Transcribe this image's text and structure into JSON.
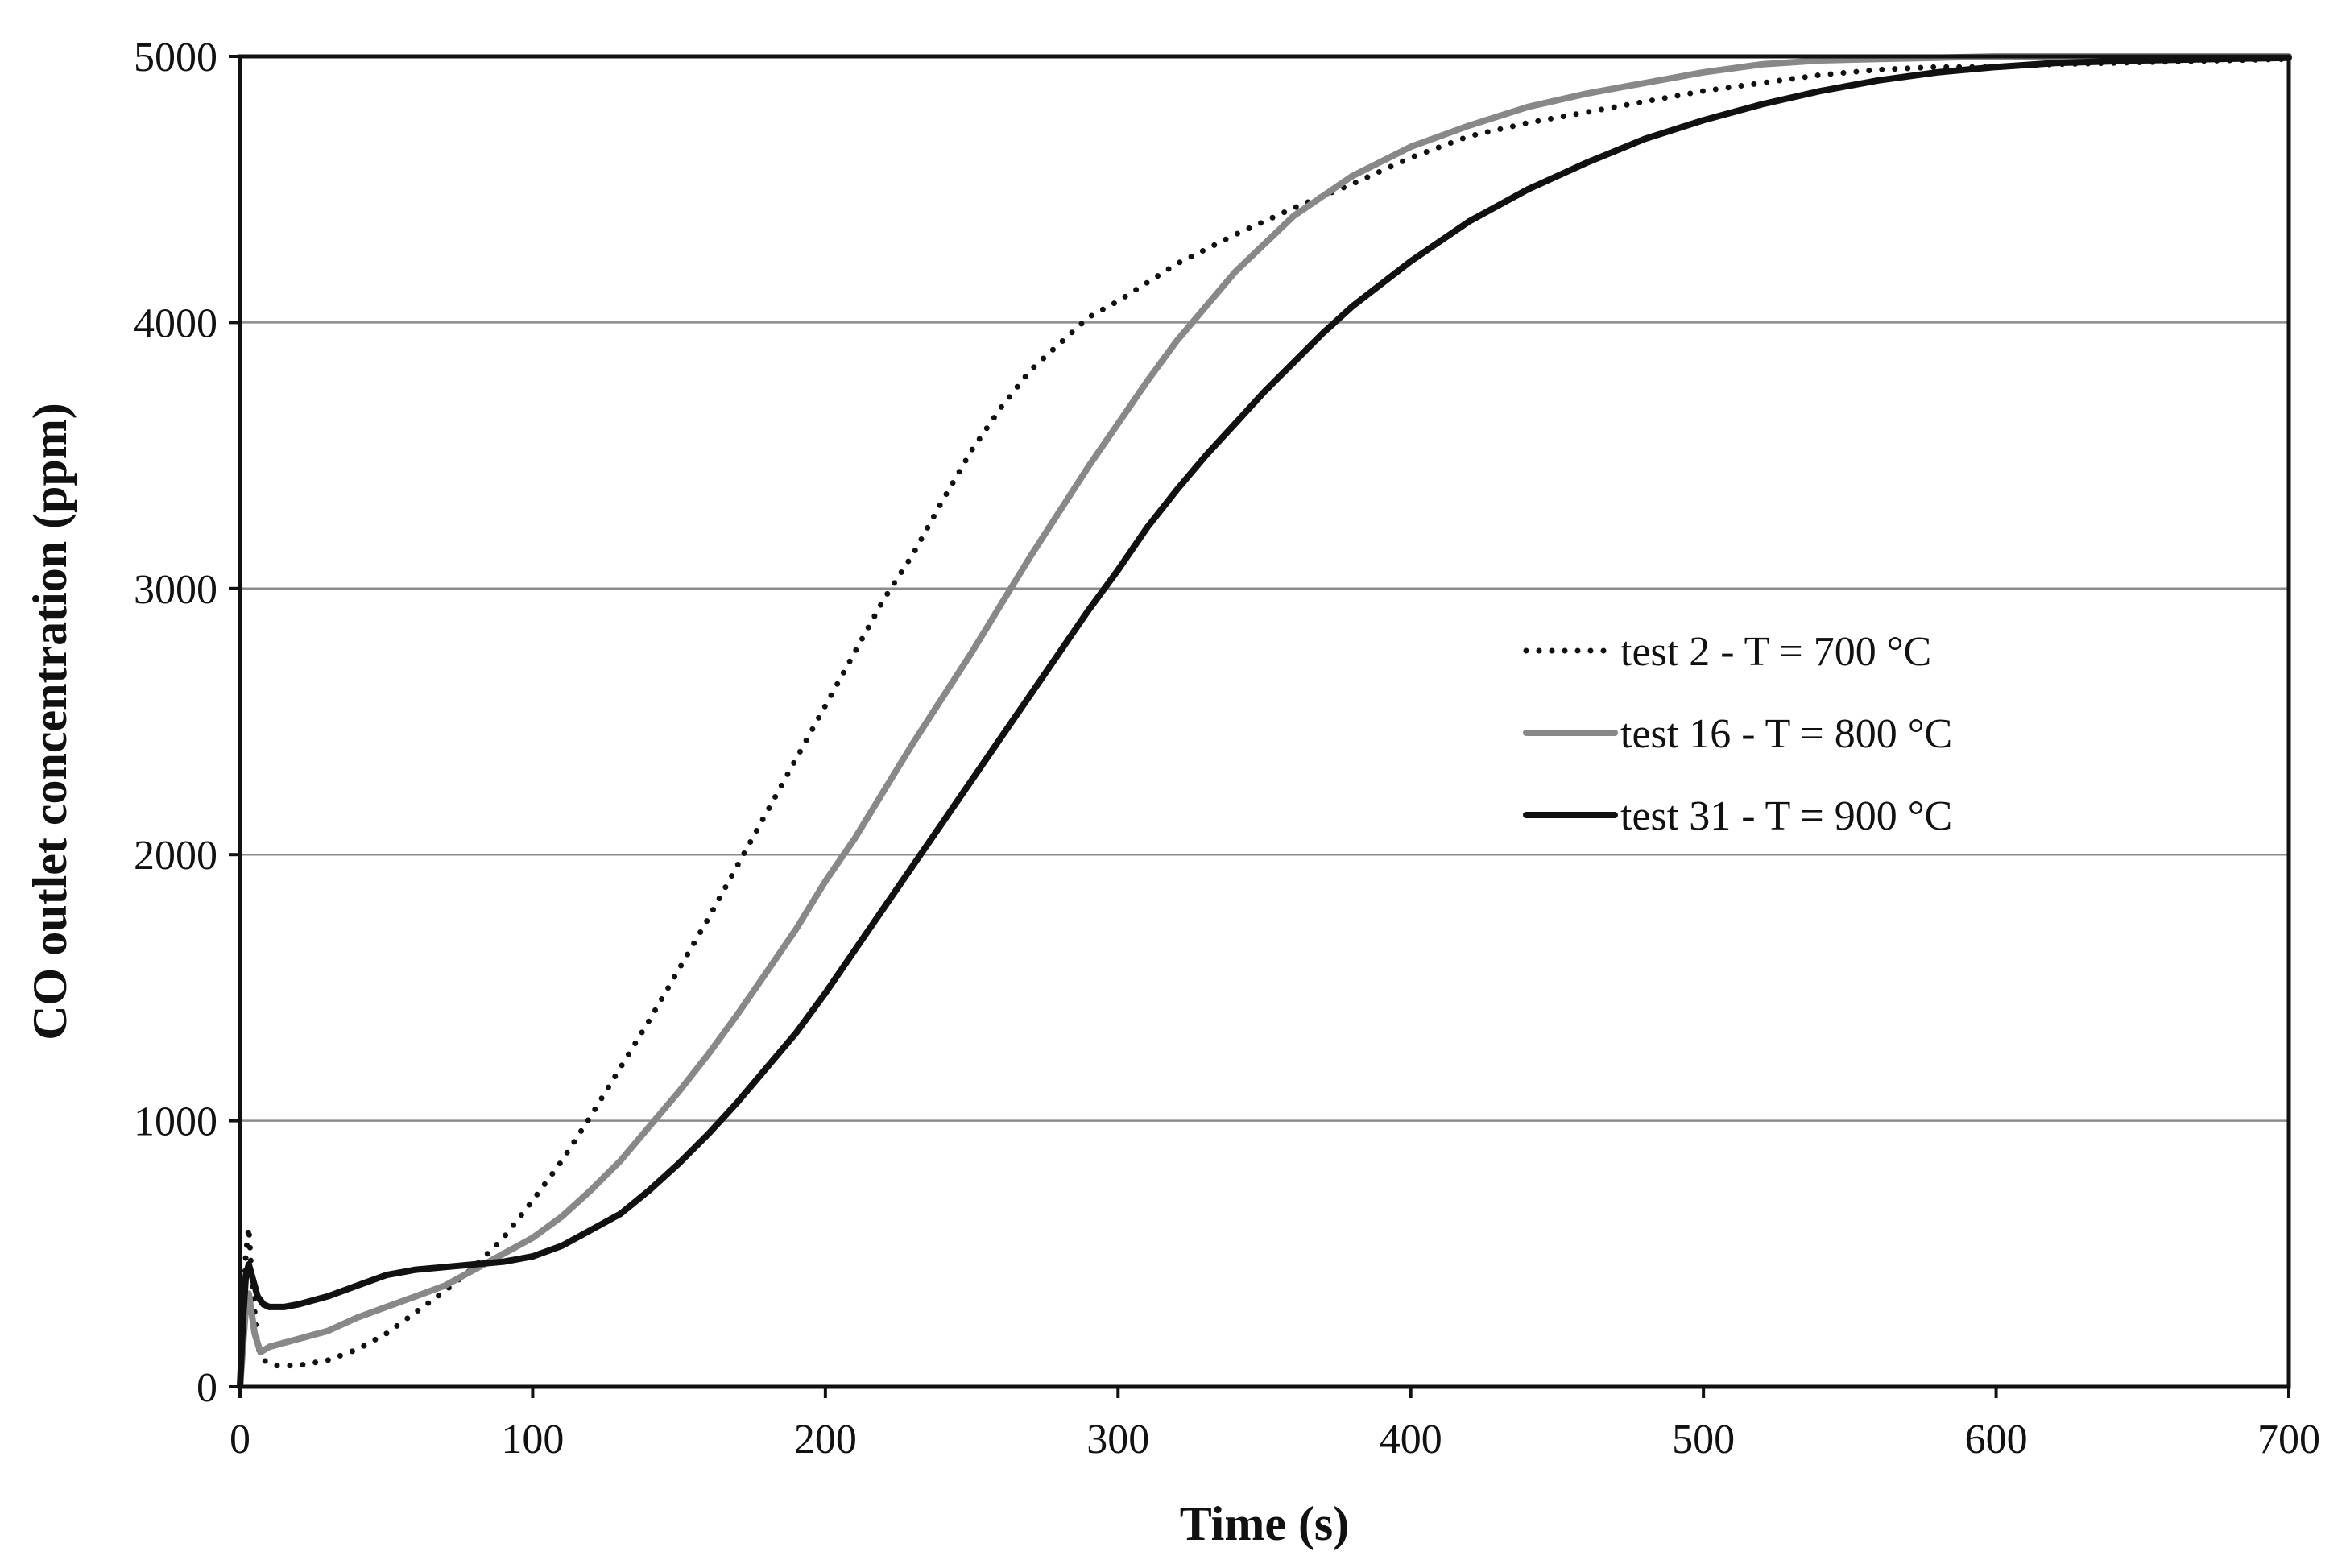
{
  "chart_data": {
    "type": "line",
    "title": "",
    "xlabel": "Time (s)",
    "ylabel": "CO outlet concentration  (ppm)",
    "xlim": [
      0,
      700
    ],
    "ylim": [
      0,
      5000
    ],
    "xticks": [
      0,
      100,
      200,
      300,
      400,
      500,
      600,
      700
    ],
    "yticks": [
      0,
      1000,
      2000,
      3000,
      4000,
      5000
    ],
    "grid": "horizontal",
    "legend_position": "center-right",
    "series": [
      {
        "name": "test 2 - T = 700 °C",
        "style": "dotted",
        "color": "#111111",
        "x": [
          0,
          2,
          3,
          4,
          6,
          8,
          12,
          20,
          30,
          40,
          50,
          60,
          70,
          80,
          90,
          100,
          110,
          120,
          130,
          140,
          150,
          160,
          170,
          180,
          190,
          200,
          210,
          220,
          230,
          240,
          250,
          260,
          270,
          280,
          290,
          300,
          320,
          340,
          360,
          380,
          400,
          420,
          440,
          460,
          480,
          500,
          520,
          540,
          560,
          580,
          600,
          620,
          640,
          660,
          680,
          700
        ],
        "y": [
          0,
          500,
          600,
          420,
          150,
          100,
          80,
          80,
          100,
          140,
          200,
          280,
          360,
          450,
          560,
          700,
          850,
          1020,
          1200,
          1380,
          1570,
          1760,
          1960,
          2160,
          2360,
          2560,
          2760,
          2960,
          3130,
          3330,
          3520,
          3680,
          3820,
          3920,
          4020,
          4080,
          4220,
          4330,
          4430,
          4520,
          4620,
          4700,
          4750,
          4790,
          4830,
          4870,
          4900,
          4930,
          4950,
          4960,
          4960,
          4970,
          4975,
          4980,
          4985,
          4990
        ]
      },
      {
        "name": "test 16 - T = 800 °C",
        "style": "solid",
        "color": "#888888",
        "x": [
          0,
          2,
          3,
          5,
          7,
          10,
          20,
          30,
          40,
          50,
          60,
          70,
          80,
          90,
          100,
          110,
          120,
          130,
          140,
          150,
          160,
          170,
          180,
          190,
          200,
          210,
          220,
          230,
          240,
          250,
          260,
          270,
          280,
          290,
          300,
          310,
          320,
          330,
          340,
          360,
          380,
          400,
          420,
          440,
          460,
          480,
          500,
          520,
          540,
          560,
          580,
          600,
          620,
          650,
          700
        ],
        "y": [
          0,
          300,
          350,
          200,
          130,
          150,
          180,
          210,
          260,
          300,
          340,
          380,
          440,
          500,
          560,
          640,
          740,
          850,
          980,
          1110,
          1250,
          1400,
          1560,
          1720,
          1900,
          2060,
          2240,
          2420,
          2590,
          2760,
          2940,
          3120,
          3290,
          3460,
          3620,
          3780,
          3930,
          4060,
          4190,
          4400,
          4550,
          4660,
          4740,
          4810,
          4860,
          4900,
          4940,
          4970,
          4985,
          4990,
          4995,
          5000,
          5000,
          5000,
          5000
        ]
      },
      {
        "name": "test 31 - T = 900 °C",
        "style": "solid",
        "color": "#111111",
        "x": [
          0,
          1,
          2,
          3,
          4,
          5,
          6,
          8,
          10,
          15,
          20,
          30,
          40,
          50,
          60,
          70,
          80,
          90,
          100,
          110,
          120,
          130,
          140,
          150,
          160,
          170,
          180,
          190,
          200,
          210,
          220,
          230,
          240,
          250,
          260,
          270,
          280,
          290,
          300,
          310,
          320,
          330,
          340,
          350,
          360,
          370,
          380,
          400,
          420,
          440,
          460,
          480,
          500,
          520,
          540,
          560,
          580,
          600,
          620,
          650,
          700
        ],
        "y": [
          0,
          250,
          420,
          460,
          420,
          380,
          340,
          310,
          300,
          300,
          310,
          340,
          380,
          420,
          440,
          450,
          460,
          470,
          490,
          530,
          590,
          650,
          740,
          840,
          950,
          1070,
          1200,
          1330,
          1480,
          1640,
          1800,
          1960,
          2120,
          2280,
          2440,
          2600,
          2760,
          2920,
          3070,
          3230,
          3370,
          3500,
          3620,
          3740,
          3850,
          3960,
          4060,
          4230,
          4380,
          4500,
          4600,
          4690,
          4760,
          4820,
          4870,
          4910,
          4940,
          4960,
          4975,
          4985,
          4995
        ]
      }
    ]
  }
}
